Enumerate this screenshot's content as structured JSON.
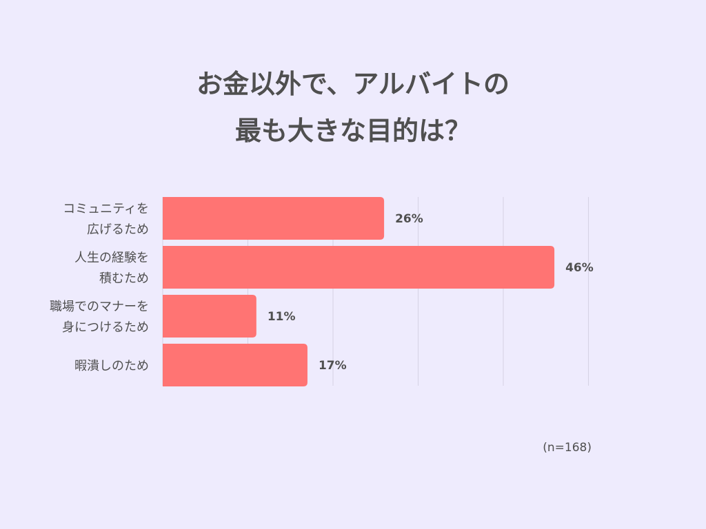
{
  "title_lines": [
    "お金以外で、アルバイトの",
    "最も大きな目的は？"
  ],
  "note": "(n=168)",
  "colors": {
    "background": "#eeebfd",
    "bar": "#ff7473",
    "text": "#4f4f4f",
    "grid": "#d5d2e4"
  },
  "chart_data": {
    "type": "bar",
    "orientation": "horizontal",
    "categories": [
      [
        "コミュニティを",
        "広げるため"
      ],
      [
        "人生の経験を",
        "積むため"
      ],
      [
        "職場でのマナーを",
        "身につけるため"
      ],
      [
        "暇潰しのため"
      ]
    ],
    "values": [
      26,
      46,
      11,
      17
    ],
    "value_labels": [
      "26%",
      "46%",
      "11%",
      "17%"
    ],
    "xlim": [
      0,
      50
    ],
    "grid": true
  }
}
